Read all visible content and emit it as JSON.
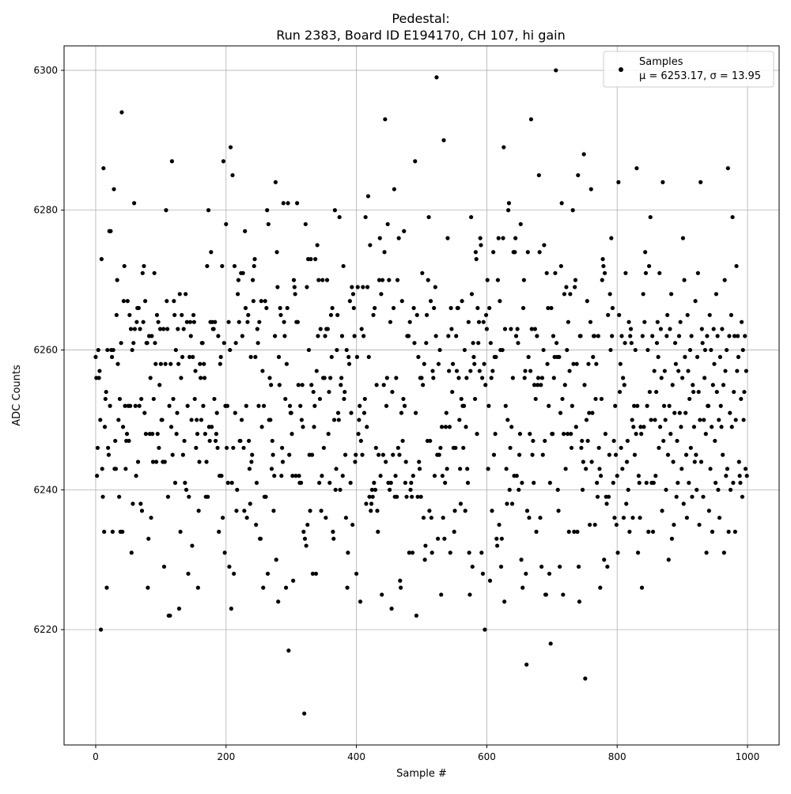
{
  "chart_data": {
    "type": "scatter",
    "title_line1": "Pedestal:",
    "title_line2": "Run 2383, Board ID E194170, CH 107, hi gain",
    "xlabel": "Sample #",
    "ylabel": "ADC Counts",
    "xlim": [
      -48.5,
      1048.5
    ],
    "ylim": [
      6203.5,
      6303.5
    ],
    "xticks": [
      "0",
      "200",
      "400",
      "600",
      "800",
      "1000"
    ],
    "yticks": [
      "6220",
      "6240",
      "6260",
      "6280",
      "6300"
    ],
    "grid": true,
    "legend": {
      "placement": "top-right",
      "entries": [
        {
          "label": "Samples",
          "stats": "μ = 6253.17, σ = 13.95"
        }
      ]
    },
    "marker_color": "#000000",
    "y": [
      6259,
      6256,
      6242,
      6246,
      6260,
      6256,
      6257,
      6250,
      6220,
      6273,
      6243,
      6239,
      6286,
      6234,
      6249,
      6253,
      6254,
      6226,
      6260,
      6246,
      6245,
      6277,
      6252,
      6277,
      6260,
      6259,
      6234,
      6260,
      6283,
      6243,
      6247,
      6243,
      6265,
      6270,
      6258,
      6250,
      6239,
      6253,
      6234,
      6261,
      6294,
      6234,
      6249,
      6267,
      6272,
      6252,
      6243,
      6247,
      6248,
      6267,
      6252,
      6247,
      6265,
      6252,
      6263,
      6231,
      6260,
      6238,
      6261,
      6281,
      6263,
      6252,
      6242,
      6264,
      6266,
      6244,
      6266,
      6252,
      6263,
      6238,
      6253,
      6237,
      6271,
      6264,
      6272,
      6251,
      6267,
      6248,
      6261,
      6261,
      6226,
      6233,
      6262,
      6248,
      6256,
      6236,
      6262,
      6248,
      6244,
      6253,
      6271,
      6261,
      6258,
      6244,
      6265,
      6248,
      6264,
      6246,
      6255,
      6263,
      6258,
      6250,
      6250,
      6244,
      6263,
      6229,
      6244,
      6258,
      6280,
      6267,
      6263,
      6239,
      6222,
      6252,
      6222,
      6258,
      6249,
      6287,
      6245,
      6253,
      6267,
      6265,
      6241,
      6260,
      6248,
      6251,
      6263,
      6258,
      6223,
      6268,
      6234,
      6256,
      6265,
      6259,
      6245,
      6263,
      6247,
      6241,
      6268,
      6240,
      6264,
      6252,
      6228,
      6239,
      6259,
      6264,
      6262,
      6250,
      6232,
      6259,
      6265,
      6264,
      6253,
      6257,
      6246,
      6250,
      6248,
      6226,
      6237,
      6244,
      6258,
      6256,
      6250,
      6261,
      6261,
      6252,
      6258,
      6256,
      6248,
      6239,
      6244,
      6272,
      6239,
      6280,
      6249,
      6247,
      6264,
      6274,
      6249,
      6264,
      6263,
      6263,
      6253,
      6264,
      6247,
      6248,
      6251,
      6246,
      6262,
      6234,
      6242,
      6258,
      6259,
      6242,
      6272,
      6236,
      6287,
      6261,
      6231,
      6252,
      6278,
      6246,
      6252,
      6241,
      6264,
      6229,
      6260,
      6289,
      6223,
      6241,
      6285,
      6246,
      6228,
      6272,
      6251,
      6261,
      6237,
      6240,
      6268,
      6270,
      6264,
      6247,
      6247,
      6271,
      6250,
      6262,
      6271,
      6246,
      6237,
      6277,
      6266,
      6252,
      6236,
      6264,
      6265,
      6247,
      6243,
      6238,
      6259,
      6244,
      6245,
      6270,
      6267,
      6272,
      6273,
      6259,
      6235,
      6241,
      6263,
      6261,
      6252,
      6264,
      6233,
      6233,
      6267,
      6249,
      6257,
      6226,
      6252,
      6239,
      6267,
      6239,
      6266,
      6280,
      6228,
      6278,
      6250,
      6256,
      6250,
      6255,
      6243,
      6247,
      6245,
      6237,
      6242,
      6262,
      6284,
      6230,
      6274,
      6269,
      6224,
      6259,
      6255,
      6266,
      6265,
      6242,
      6246,
      6244,
      6281,
      6264,
      6262,
      6253,
      6226,
      6258,
      6266,
      6281,
      6217,
      6245,
      6252,
      6251,
      6251,
      6248,
      6242,
      6227,
      6270,
      6269,
      6268,
      6242,
      6264,
      6281,
      6264,
      6255,
      6242,
      6241,
      6252,
      6241,
      6250,
      6255,
      6249,
      6234,
      6208,
      6233,
      6278,
      6232,
      6269,
      6235,
      6273,
      6260,
      6245,
      6237,
      6273,
      6255,
      6245,
      6228,
      6254,
      6249,
      6252,
      6273,
      6228,
      6257,
      6275,
      6262,
      6270,
      6241,
      6253,
      6263,
      6237,
      6242,
      6270,
      6256,
      6246,
      6256,
      6262,
      6236,
      6263,
      6270,
      6263,
      6248,
      6254,
      6241,
      6256,
      6265,
      6259,
      6266,
      6234,
      6233,
      6250,
      6280,
      6240,
      6243,
      6260,
      6265,
      6251,
      6250,
      6279,
      6240,
      6255,
      6256,
      6262,
      6242,
      6272,
      6253,
      6254,
      6245,
      6236,
      6260,
      6226,
      6231,
      6259,
      6258,
      6267,
      6241,
      6251,
      6269,
      6235,
      6268,
      6266,
      6262,
      6244,
      6245,
      6228,
      6259,
      6269,
      6248,
      6250,
      6252,
      6224,
      6247,
      6263,
      6245,
      6269,
      6262,
      6251,
      6253,
      6279,
      6238,
      6249,
      6269,
      6282,
      6259,
      6239,
      6275,
      6237,
      6238,
      6240,
      6239,
      6265,
      6241,
      6266,
      6240,
      6246,
      6255,
      6237,
      6234,
      6245,
      6270,
      6276,
      6242,
      6268,
      6225,
      6270,
      6245,
      6255,
      6274,
      6293,
      6244,
      6252,
      6256,
      6278,
      6241,
      6270,
      6240,
      6264,
      6241,
      6223,
      6254,
      6245,
      6266,
      6283,
      6239,
      6242,
      6256,
      6239,
      6270,
      6246,
      6276,
      6245,
      6227,
      6226,
      6251,
      6267,
      6247,
      6253,
      6277,
      6252,
      6241,
      6244,
      6239,
      6262,
      6262,
      6262,
      6231,
      6264,
      6240,
      6241,
      6239,
      6231,
      6242,
      6266,
      6261,
      6287,
      6251,
      6222,
      6265,
      6239,
      6259,
      6244,
      6243,
      6256,
      6239,
      6256,
      6271,
      6255,
      6236,
      6258,
      6230,
      6232,
      6261,
      6265,
      6247,
      6270,
      6279,
      6237,
      6247,
      6267,
      6236,
      6231,
      6257,
      6256,
      6266,
      6242,
      6269,
      6262,
      6299,
      6245,
      6233,
      6258,
      6245,
      6260,
      6246,
      6225,
      6249,
      6242,
      6236,
      6290,
      6233,
      6241,
      6249,
      6251,
      6243,
      6276,
      6262,
      6257,
      6249,
      6231,
      6266,
      6263,
      6254,
      6258,
      6246,
      6234,
      6237,
      6246,
      6262,
      6257,
      6266,
      6266,
      6256,
      6250,
      6243,
      6238,
      6253,
      6267,
      6252,
      6246,
      6252,
      6260,
      6237,
      6249,
      6256,
      6243,
      6241,
      6264,
      6231,
      6225,
      6257,
      6279,
      6268,
      6229,
      6261,
      6259,
      6258,
      6253,
      6274,
      6273,
      6248,
      6266,
      6261,
      6264,
      6257,
      6276,
      6275,
      6231,
      6256,
      6228,
      6264,
      6258,
      6220,
      6255,
      6265,
      6263,
      6270,
      6243,
      6252,
      6266,
      6227,
      6261,
      6256,
      6237,
      6257,
      6274,
      6245,
      6259,
      6248,
      6259,
      6233,
      6232,
      6270,
      6276,
      6235,
      6267,
      6260,
      6229,
      6233,
      6260,
      6276,
      6289,
      6224,
      6263,
      6252,
      6243,
      6238,
      6250,
      6280,
      6281,
      6240,
      6246,
      6263,
      6249,
      6238,
      6256,
      6274,
      6242,
      6274,
      6276,
      6262,
      6242,
      6263,
      6261,
      6240,
      6245,
      6248,
      6278,
      6230,
      6241,
      6226,
      6266,
      6270,
      6256,
      6257,
      6228,
      6215,
      6237,
      6274,
      6259,
      6236,
      6248,
      6257,
      6293,
      6263,
      6245,
      6247,
      6241,
      6255,
      6263,
      6253,
      6234,
      6262,
      6255,
      6256,
      6285,
      6274,
      6236,
      6255,
      6229,
      6256,
      6245,
      6260,
      6275,
      6247,
      6225,
      6225,
      6271,
      6258,
      6266,
      6252,
      6228,
      6241,
      6218,
      6266,
      6248,
      6248,
      6262,
      6256,
      6259,
      6271,
      6300,
      6261,
      6259,
      6240,
      6237,
      6259,
      6229,
      6251,
      6272,
      6281,
      6253,
      6225,
      6248,
      6268,
      6255,
      6243,
      6269,
      6260,
      6248,
      6264,
      6234,
      6257,
      6268,
      6248,
      6246,
      6252,
      6280,
      6258,
      6234,
      6269,
      6270,
      6249,
      6258,
      6234,
      6285,
      6229,
      6224,
      6262,
      6262,
      6246,
      6247,
      6240,
      6244,
      6288,
      6255,
      6213,
      6243,
      6250,
      6267,
      6247,
      6258,
      6251,
      6235,
      6264,
      6283,
      6244,
      6251,
      6259,
      6262,
      6262,
      6235,
      6253,
      6258,
      6241,
      6239,
      6262,
      6246,
      6243,
      6226,
      6242,
      6253,
      6270,
      6273,
      6272,
      6230,
      6271,
      6248,
      6239,
      6238,
      6229,
      6265,
      6239,
      6245,
      6268,
      6260,
      6276,
      6262,
      6266,
      6241,
      6247,
      6236,
      6252,
      6245,
      6235,
      6242,
      6231,
      6284,
      6265,
      6254,
      6258,
      6246,
      6262,
      6243,
      6256,
      6236,
      6255,
      6261,
      6271,
      6238,
      6244,
      6247,
      6240,
      6264,
      6234,
      6262,
      6263,
      6261,
      6250,
      6236,
      6249,
      6252,
      6245,
      6260,
      6248,
      6286,
      6252,
      6231,
      6242,
      6241,
      6236,
      6249,
      6248,
      6226,
      6262,
      6268,
      6249,
      6264,
      6274,
      6271,
      6241,
      6252,
      6260,
      6234,
      6272,
      6254,
      6279,
      6250,
      6241,
      6262,
      6234,
      6241,
      6257,
      6250,
      6242,
      6254,
      6261,
      6264,
      6259,
      6246,
      6271,
      6249,
      6263,
      6256,
      6237,
      6284,
      6247,
      6252,
      6257,
      6250,
      6240,
      6262,
      6265,
      6245,
      6230,
      6252,
      6263,
      6248,
      6268,
      6233,
      6255,
      6244,
      6235,
      6251,
      6261,
      6258,
      6239,
      6247,
      6241,
      6257,
      6262,
      6251,
      6264,
      6249,
      6243,
      6256,
      6276,
      6238,
      6270,
      6259,
      6251,
      6245,
      6236,
      6265,
      6257,
      6241,
      6253,
      6260,
      6246,
      6262,
      6239,
      6255,
      6254,
      6249,
      6244,
      6267,
      6245,
      6240,
      6259,
      6271,
      6254,
      6235,
      6250,
      6284,
      6244,
      6263,
      6261,
      6239,
      6250,
      6256,
      6260,
      6248,
      6231,
      6262,
      6252,
      6252,
      6237,
      6265,
      6243,
      6260,
      6249,
      6234,
      6255,
      6263,
      6258,
      6247,
      6241,
      6268,
      6254,
      6262,
      6240,
      6250,
      6236,
      6259,
      6252,
      6249,
      6263,
      6245,
      6255,
      6231,
      6270,
      6257,
      6242,
      6260,
      6243,
      6286,
      6234,
      6262,
      6251,
      6240,
      6265,
      6249,
      6279,
      6241,
      6254,
      6262,
      6234,
      6250,
      6272,
      6257,
      6262,
      6259,
      6244,
      6242,
      6241,
      6253,
      6264,
      6239,
      6260,
      6250,
      6254,
      6262,
      6243,
      6257,
      6242
    ]
  }
}
